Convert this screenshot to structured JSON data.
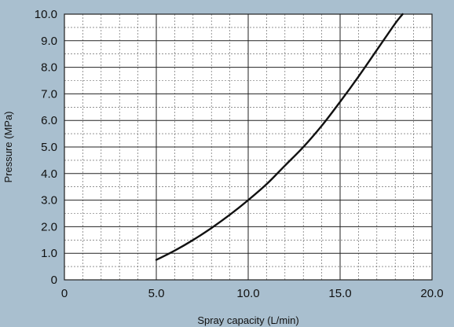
{
  "chart_data": {
    "type": "line",
    "xlabel": "Spray capacity (L/min)",
    "ylabel": "Pressure (MPa)",
    "xlim": [
      0,
      20
    ],
    "ylim": [
      0,
      10
    ],
    "x_ticks": [
      "0",
      "5.0",
      "10.0",
      "15.0",
      "20.0"
    ],
    "y_ticks": [
      "0",
      "1.0",
      "2.0",
      "3.0",
      "4.0",
      "5.0",
      "6.0",
      "7.0",
      "8.0",
      "9.0",
      "10.0"
    ],
    "grid": true,
    "series": [
      {
        "color": "#111111",
        "x": [
          5.0,
          6.0,
          7.0,
          8.0,
          9.0,
          10.0,
          11.0,
          12.0,
          13.0,
          14.0,
          15.0,
          16.0,
          17.0,
          18.0,
          18.4
        ],
        "y": [
          0.75,
          1.1,
          1.5,
          1.95,
          2.45,
          3.0,
          3.6,
          4.3,
          5.0,
          5.8,
          6.7,
          7.65,
          8.65,
          9.65,
          10.0
        ]
      }
    ]
  }
}
